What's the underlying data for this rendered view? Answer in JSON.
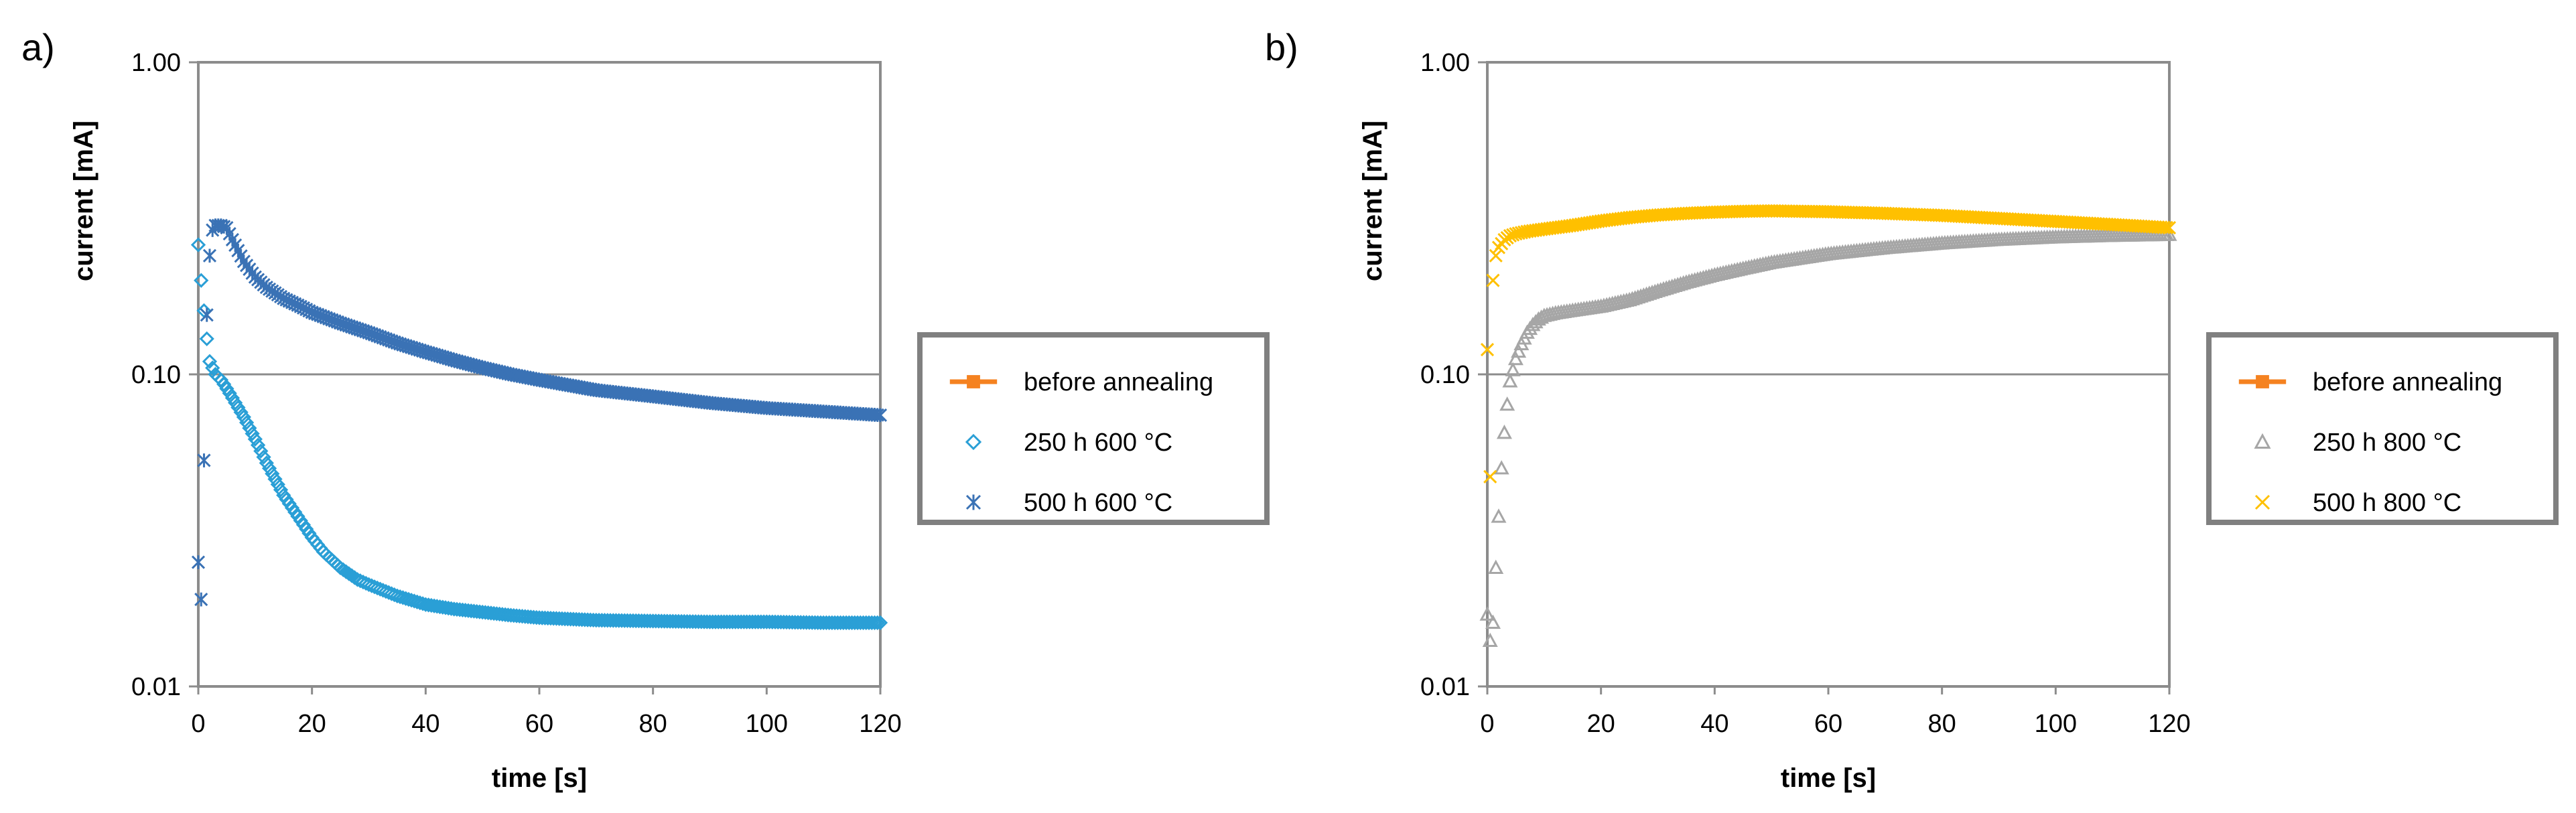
{
  "chart_data": [
    {
      "type": "scatter",
      "panel": "a)",
      "xlabel": "time [s]",
      "ylabel": "current [mA]",
      "xscale": "linear",
      "yscale": "log",
      "xlim": [
        0,
        120
      ],
      "ylim": [
        0.01,
        1.0
      ],
      "xticks": [
        0,
        20,
        40,
        60,
        80,
        100,
        120
      ],
      "yticks": [
        0.01,
        0.1,
        1.0
      ],
      "ytick_labels": [
        "0.01",
        "0.10",
        "1.00"
      ],
      "grid": "horizontal major lines",
      "legend_position": "right",
      "series": [
        {
          "name": "before annealing",
          "marker": "square-line",
          "color": "#f58220",
          "x": [],
          "y": []
        },
        {
          "name": "250 h 600 °C",
          "marker": "diamond",
          "color": "#2a9fd6",
          "x": [
            0,
            0.5,
            1,
            1.5,
            2,
            3,
            4,
            5,
            6,
            8,
            10,
            12,
            15,
            18,
            20,
            22,
            25,
            28,
            30,
            35,
            40,
            45,
            50,
            55,
            60,
            70,
            80,
            90,
            100,
            110,
            120
          ],
          "y": [
            0.26,
            0.2,
            0.16,
            0.13,
            0.11,
            0.1,
            0.096,
            0.09,
            0.084,
            0.073,
            0.062,
            0.052,
            0.041,
            0.034,
            0.03,
            0.027,
            0.024,
            0.022,
            0.0212,
            0.0195,
            0.0183,
            0.0177,
            0.0173,
            0.0169,
            0.0166,
            0.0163,
            0.0162,
            0.0161,
            0.0161,
            0.016,
            0.016
          ]
        },
        {
          "name": "500 h 600 °C",
          "marker": "asterisk",
          "color": "#3a72b5",
          "x": [
            0,
            0.5,
            1,
            1.5,
            2,
            2.5,
            3,
            4,
            5,
            6,
            8,
            10,
            12,
            15,
            18,
            20,
            25,
            30,
            35,
            40,
            45,
            50,
            55,
            60,
            70,
            80,
            90,
            100,
            110,
            120
          ],
          "y": [
            0.025,
            0.019,
            0.053,
            0.155,
            0.24,
            0.29,
            0.3,
            0.3,
            0.295,
            0.27,
            0.23,
            0.205,
            0.19,
            0.175,
            0.165,
            0.158,
            0.146,
            0.136,
            0.126,
            0.118,
            0.111,
            0.105,
            0.1,
            0.096,
            0.089,
            0.085,
            0.081,
            0.078,
            0.076,
            0.074
          ]
        }
      ]
    },
    {
      "type": "scatter",
      "panel": "b)",
      "xlabel": "time [s]",
      "ylabel": "current [mA]",
      "xscale": "linear",
      "yscale": "log",
      "xlim": [
        0,
        120
      ],
      "ylim": [
        0.01,
        1.0
      ],
      "xticks": [
        0,
        20,
        40,
        60,
        80,
        100,
        120
      ],
      "yticks": [
        0.01,
        0.1,
        1.0
      ],
      "ytick_labels": [
        "0.01",
        "0.10",
        "1.00"
      ],
      "grid": "horizontal major lines",
      "legend_position": "right",
      "series": [
        {
          "name": "before annealing",
          "marker": "square-line",
          "color": "#f58220",
          "x": [],
          "y": []
        },
        {
          "name": "250 h 800 °C",
          "marker": "triangle",
          "color": "#a6a6a6",
          "x": [
            0,
            0.5,
            1,
            1.5,
            2,
            2.5,
            3,
            3.5,
            4,
            5,
            6,
            7,
            8,
            9,
            10,
            12,
            15,
            20,
            25,
            30,
            35,
            40,
            45,
            50,
            60,
            70,
            80,
            90,
            100,
            110,
            120
          ],
          "y": [
            0.017,
            0.014,
            0.016,
            0.024,
            0.035,
            0.05,
            0.065,
            0.08,
            0.095,
            0.112,
            0.125,
            0.136,
            0.144,
            0.15,
            0.154,
            0.157,
            0.16,
            0.165,
            0.173,
            0.185,
            0.197,
            0.208,
            0.218,
            0.228,
            0.243,
            0.254,
            0.263,
            0.27,
            0.275,
            0.278,
            0.28
          ]
        },
        {
          "name": "500 h 800 °C",
          "marker": "x",
          "color": "#ffc000",
          "x": [
            0,
            0.5,
            1,
            1.5,
            2,
            3,
            4,
            5,
            7,
            10,
            15,
            20,
            25,
            30,
            35,
            40,
            45,
            50,
            55,
            60,
            70,
            80,
            90,
            100,
            110,
            120
          ],
          "y": [
            0.12,
            0.047,
            0.2,
            0.24,
            0.255,
            0.27,
            0.278,
            0.282,
            0.287,
            0.292,
            0.3,
            0.31,
            0.318,
            0.324,
            0.328,
            0.331,
            0.333,
            0.334,
            0.333,
            0.332,
            0.328,
            0.323,
            0.316,
            0.309,
            0.302,
            0.295
          ]
        }
      ]
    }
  ]
}
